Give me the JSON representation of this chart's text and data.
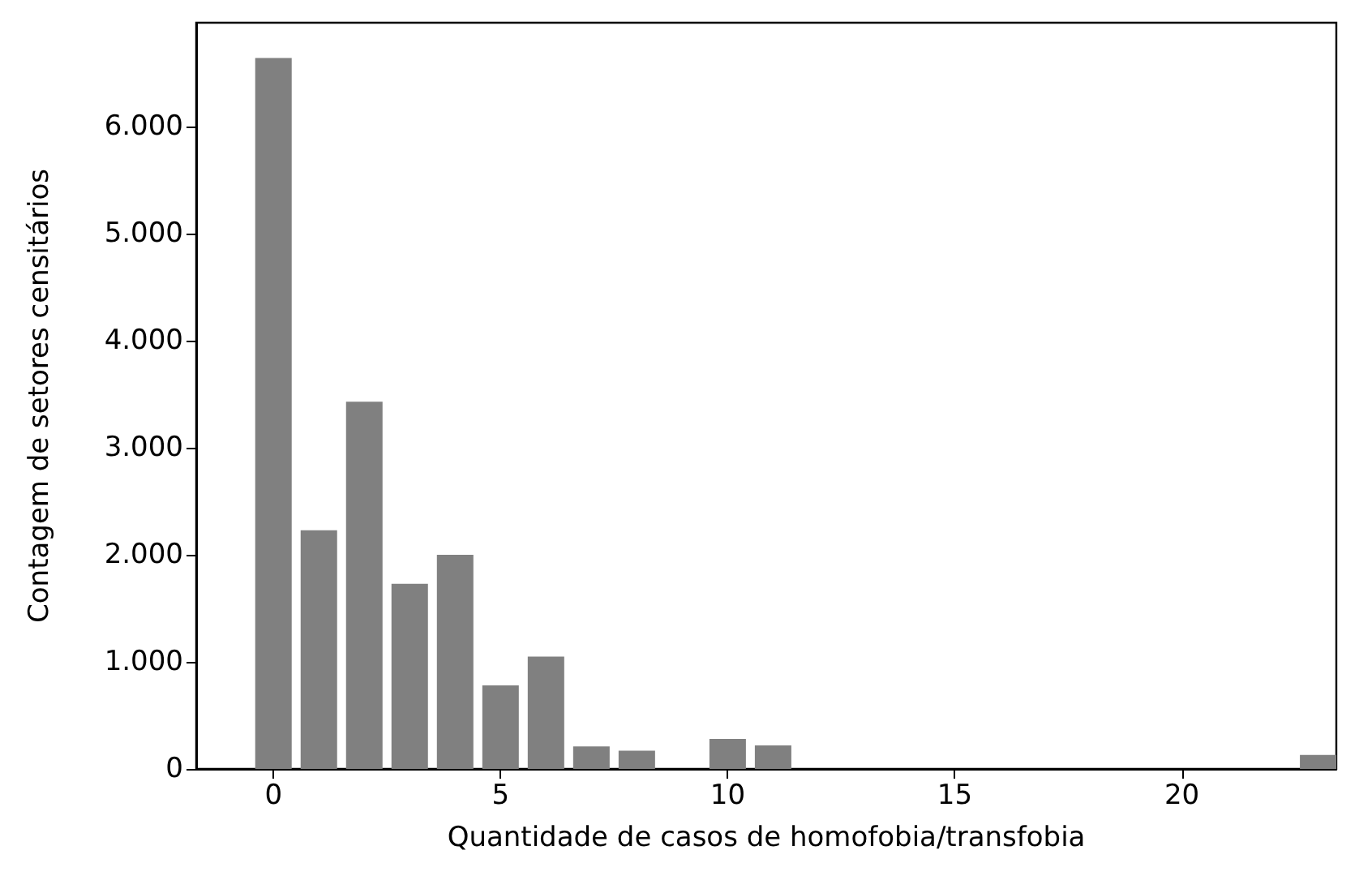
{
  "chart_data": {
    "type": "bar",
    "xlabel": "Quantidade de casos de homofobia/transfobia",
    "ylabel": "Contagem de setores censitários",
    "x": [
      0,
      1,
      2,
      3,
      4,
      5,
      6,
      7,
      8,
      10,
      11,
      23
    ],
    "values": [
      6640,
      2230,
      3430,
      1730,
      2000,
      780,
      1050,
      210,
      170,
      280,
      220,
      130
    ],
    "color": "#808080",
    "xlim": [
      -1.7,
      23.4
    ],
    "xticks": [
      0,
      5,
      10,
      15,
      20
    ],
    "ylim": [
      0,
      6970
    ],
    "yticks": [
      0,
      {
        "value": 1000,
        "label": "1.000"
      },
      {
        "value": 2000,
        "label": "2.000"
      },
      {
        "value": 3000,
        "label": "3.000"
      },
      {
        "value": 4000,
        "label": "4.000"
      },
      {
        "value": 5000,
        "label": "5.000"
      },
      {
        "value": 6000,
        "label": "6.000"
      }
    ],
    "grid": false
  }
}
